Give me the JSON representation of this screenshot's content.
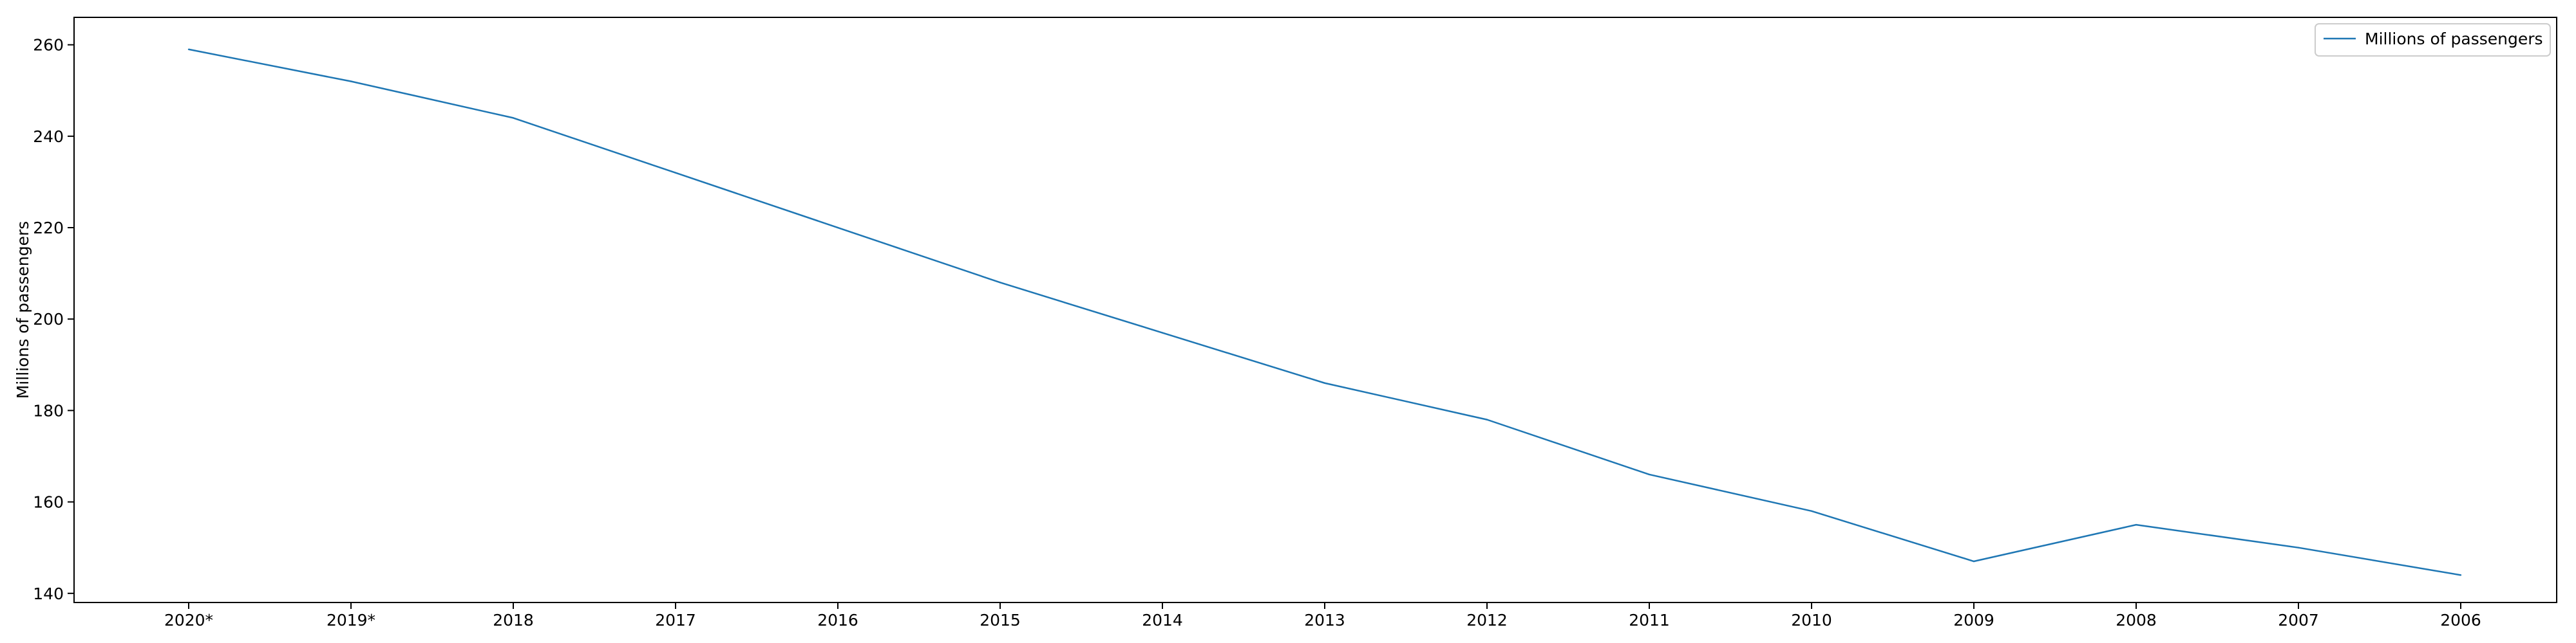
{
  "chart_data": {
    "type": "line",
    "title": "",
    "xlabel": "",
    "ylabel": "Millions of passengers",
    "categories": [
      "2020*",
      "2019*",
      "2018",
      "2017",
      "2016",
      "2015",
      "2014",
      "2013",
      "2012",
      "2011",
      "2010",
      "2009",
      "2008",
      "2007",
      "2006"
    ],
    "series": [
      {
        "name": "Millions of passengers",
        "color": "#1f77b4",
        "values": [
          259,
          252,
          244,
          232,
          220,
          208,
          197,
          186,
          178,
          166,
          158,
          147,
          155,
          150,
          144
        ]
      }
    ],
    "ylim": [
      138,
      266
    ],
    "yticks": [
      140,
      160,
      180,
      200,
      220,
      240,
      260
    ],
    "grid": false,
    "legend_position": "top-right"
  }
}
